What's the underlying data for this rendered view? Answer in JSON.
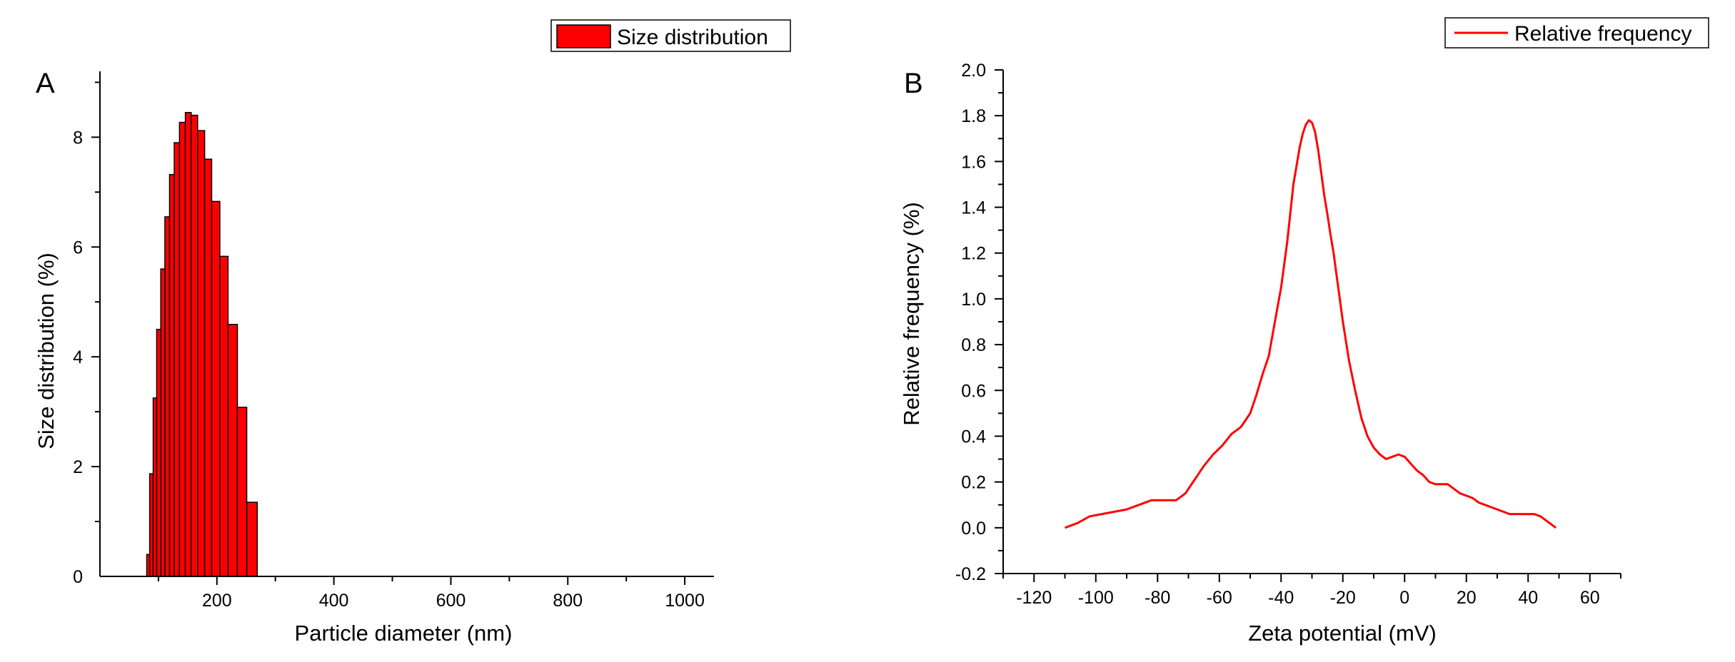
{
  "chart_data": [
    {
      "panel": "A",
      "type": "bar",
      "xlabel": "Particle diameter (nm)",
      "ylabel": "Size distribution (%)",
      "xlim": [
        0,
        1050
      ],
      "ylim": [
        0,
        9.2
      ],
      "xticks": [
        200,
        400,
        600,
        800,
        1000
      ],
      "yticks": [
        0,
        2,
        4,
        6,
        8
      ],
      "grid": false,
      "legend_position": "top-right",
      "color": "#ff0000",
      "series": [
        {
          "name": "Size distribution",
          "x": [
            80,
            85,
            91,
            97,
            104,
            111,
            119,
            127,
            136,
            146,
            156,
            167,
            179,
            191,
            205,
            219,
            235,
            251,
            269,
            288,
            308,
            330
          ],
          "values": [
            0.4,
            1.87,
            3.25,
            4.5,
            5.6,
            6.55,
            7.32,
            7.9,
            8.27,
            8.45,
            8.4,
            8.12,
            7.6,
            6.83,
            5.83,
            4.59,
            3.08,
            1.35,
            0,
            0,
            0,
            0
          ]
        }
      ]
    },
    {
      "panel": "B",
      "type": "line",
      "xlabel": "Zeta potential (mV)",
      "ylabel": "Relative frequency (%)",
      "xlim": [
        -130,
        70
      ],
      "ylim": [
        -0.2,
        2.0
      ],
      "xticks": [
        -120,
        -100,
        -80,
        -60,
        -40,
        -20,
        0,
        20,
        40,
        60
      ],
      "yticks": [
        -0.2,
        0.0,
        0.2,
        0.4,
        0.6,
        0.8,
        1.0,
        1.2,
        1.4,
        1.6,
        1.8,
        2.0
      ],
      "grid": false,
      "legend_position": "top-right",
      "color": "#ff0000",
      "series": [
        {
          "name": "Relative frequency",
          "x": [
            -110,
            -106,
            -102,
            -98,
            -94,
            -90,
            -86,
            -82,
            -78,
            -74,
            -71,
            -68,
            -65,
            -62,
            -59,
            -56,
            -53,
            -50,
            -48,
            -46,
            -44,
            -42,
            -40,
            -38,
            -36,
            -34,
            -33,
            -32,
            -31,
            -30,
            -29,
            -28,
            -27,
            -26,
            -25,
            -24,
            -23,
            -22,
            -20,
            -18,
            -16,
            -14,
            -12,
            -10,
            -8,
            -6,
            -4,
            -2,
            0,
            2,
            4,
            6,
            8,
            10,
            12,
            14,
            16,
            18,
            20,
            22,
            24,
            26,
            28,
            30,
            32,
            34,
            36,
            38,
            40,
            42,
            44,
            46,
            48,
            49
          ],
          "values": [
            0.0,
            0.02,
            0.05,
            0.06,
            0.07,
            0.08,
            0.1,
            0.12,
            0.12,
            0.12,
            0.15,
            0.21,
            0.27,
            0.32,
            0.36,
            0.41,
            0.44,
            0.5,
            0.58,
            0.67,
            0.75,
            0.9,
            1.05,
            1.25,
            1.5,
            1.66,
            1.72,
            1.76,
            1.78,
            1.77,
            1.73,
            1.65,
            1.55,
            1.45,
            1.37,
            1.28,
            1.2,
            1.1,
            0.9,
            0.73,
            0.6,
            0.48,
            0.4,
            0.35,
            0.32,
            0.3,
            0.31,
            0.32,
            0.31,
            0.28,
            0.25,
            0.23,
            0.2,
            0.19,
            0.19,
            0.19,
            0.17,
            0.15,
            0.14,
            0.13,
            0.11,
            0.1,
            0.09,
            0.08,
            0.07,
            0.06,
            0.06,
            0.06,
            0.06,
            0.06,
            0.05,
            0.03,
            0.01,
            0.0
          ]
        }
      ]
    }
  ]
}
